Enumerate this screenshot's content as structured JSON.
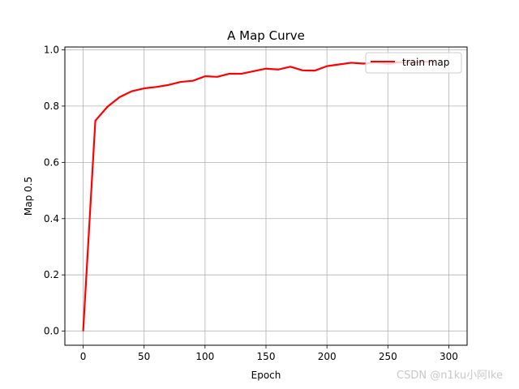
{
  "chart_data": {
    "type": "line",
    "title": "A Map Curve",
    "xlabel": "Epoch",
    "ylabel": "Map 0.5",
    "xlim": [
      -15,
      315
    ],
    "ylim": [
      -0.05,
      1.01
    ],
    "xticks": [
      0,
      50,
      100,
      150,
      200,
      250,
      300
    ],
    "yticks": [
      0.0,
      0.2,
      0.4,
      0.6,
      0.8,
      1.0
    ],
    "xtick_labels": [
      "0",
      "50",
      "100",
      "150",
      "200",
      "250",
      "300"
    ],
    "ytick_labels": [
      "0.0",
      "0.2",
      "0.4",
      "0.6",
      "0.8",
      "1.0"
    ],
    "grid": true,
    "legend": {
      "position": "top-right",
      "entries": [
        "train map"
      ]
    },
    "series": [
      {
        "name": "train map",
        "color": "#ff0000",
        "x": [
          0,
          10,
          20,
          30,
          40,
          50,
          60,
          70,
          80,
          90,
          100,
          110,
          120,
          130,
          140,
          150,
          160,
          170,
          180,
          190,
          200,
          210,
          220,
          230,
          240,
          250,
          260,
          270,
          280,
          290
        ],
        "y": [
          0.0,
          0.748,
          0.798,
          0.832,
          0.853,
          0.863,
          0.868,
          0.875,
          0.886,
          0.89,
          0.906,
          0.904,
          0.915,
          0.915,
          0.924,
          0.933,
          0.93,
          0.94,
          0.927,
          0.926,
          0.942,
          0.948,
          0.954,
          0.951,
          0.955,
          0.95,
          0.956,
          0.954,
          0.958,
          0.956
        ]
      }
    ]
  },
  "watermark": "CSDN @n1ku小阿Ike"
}
